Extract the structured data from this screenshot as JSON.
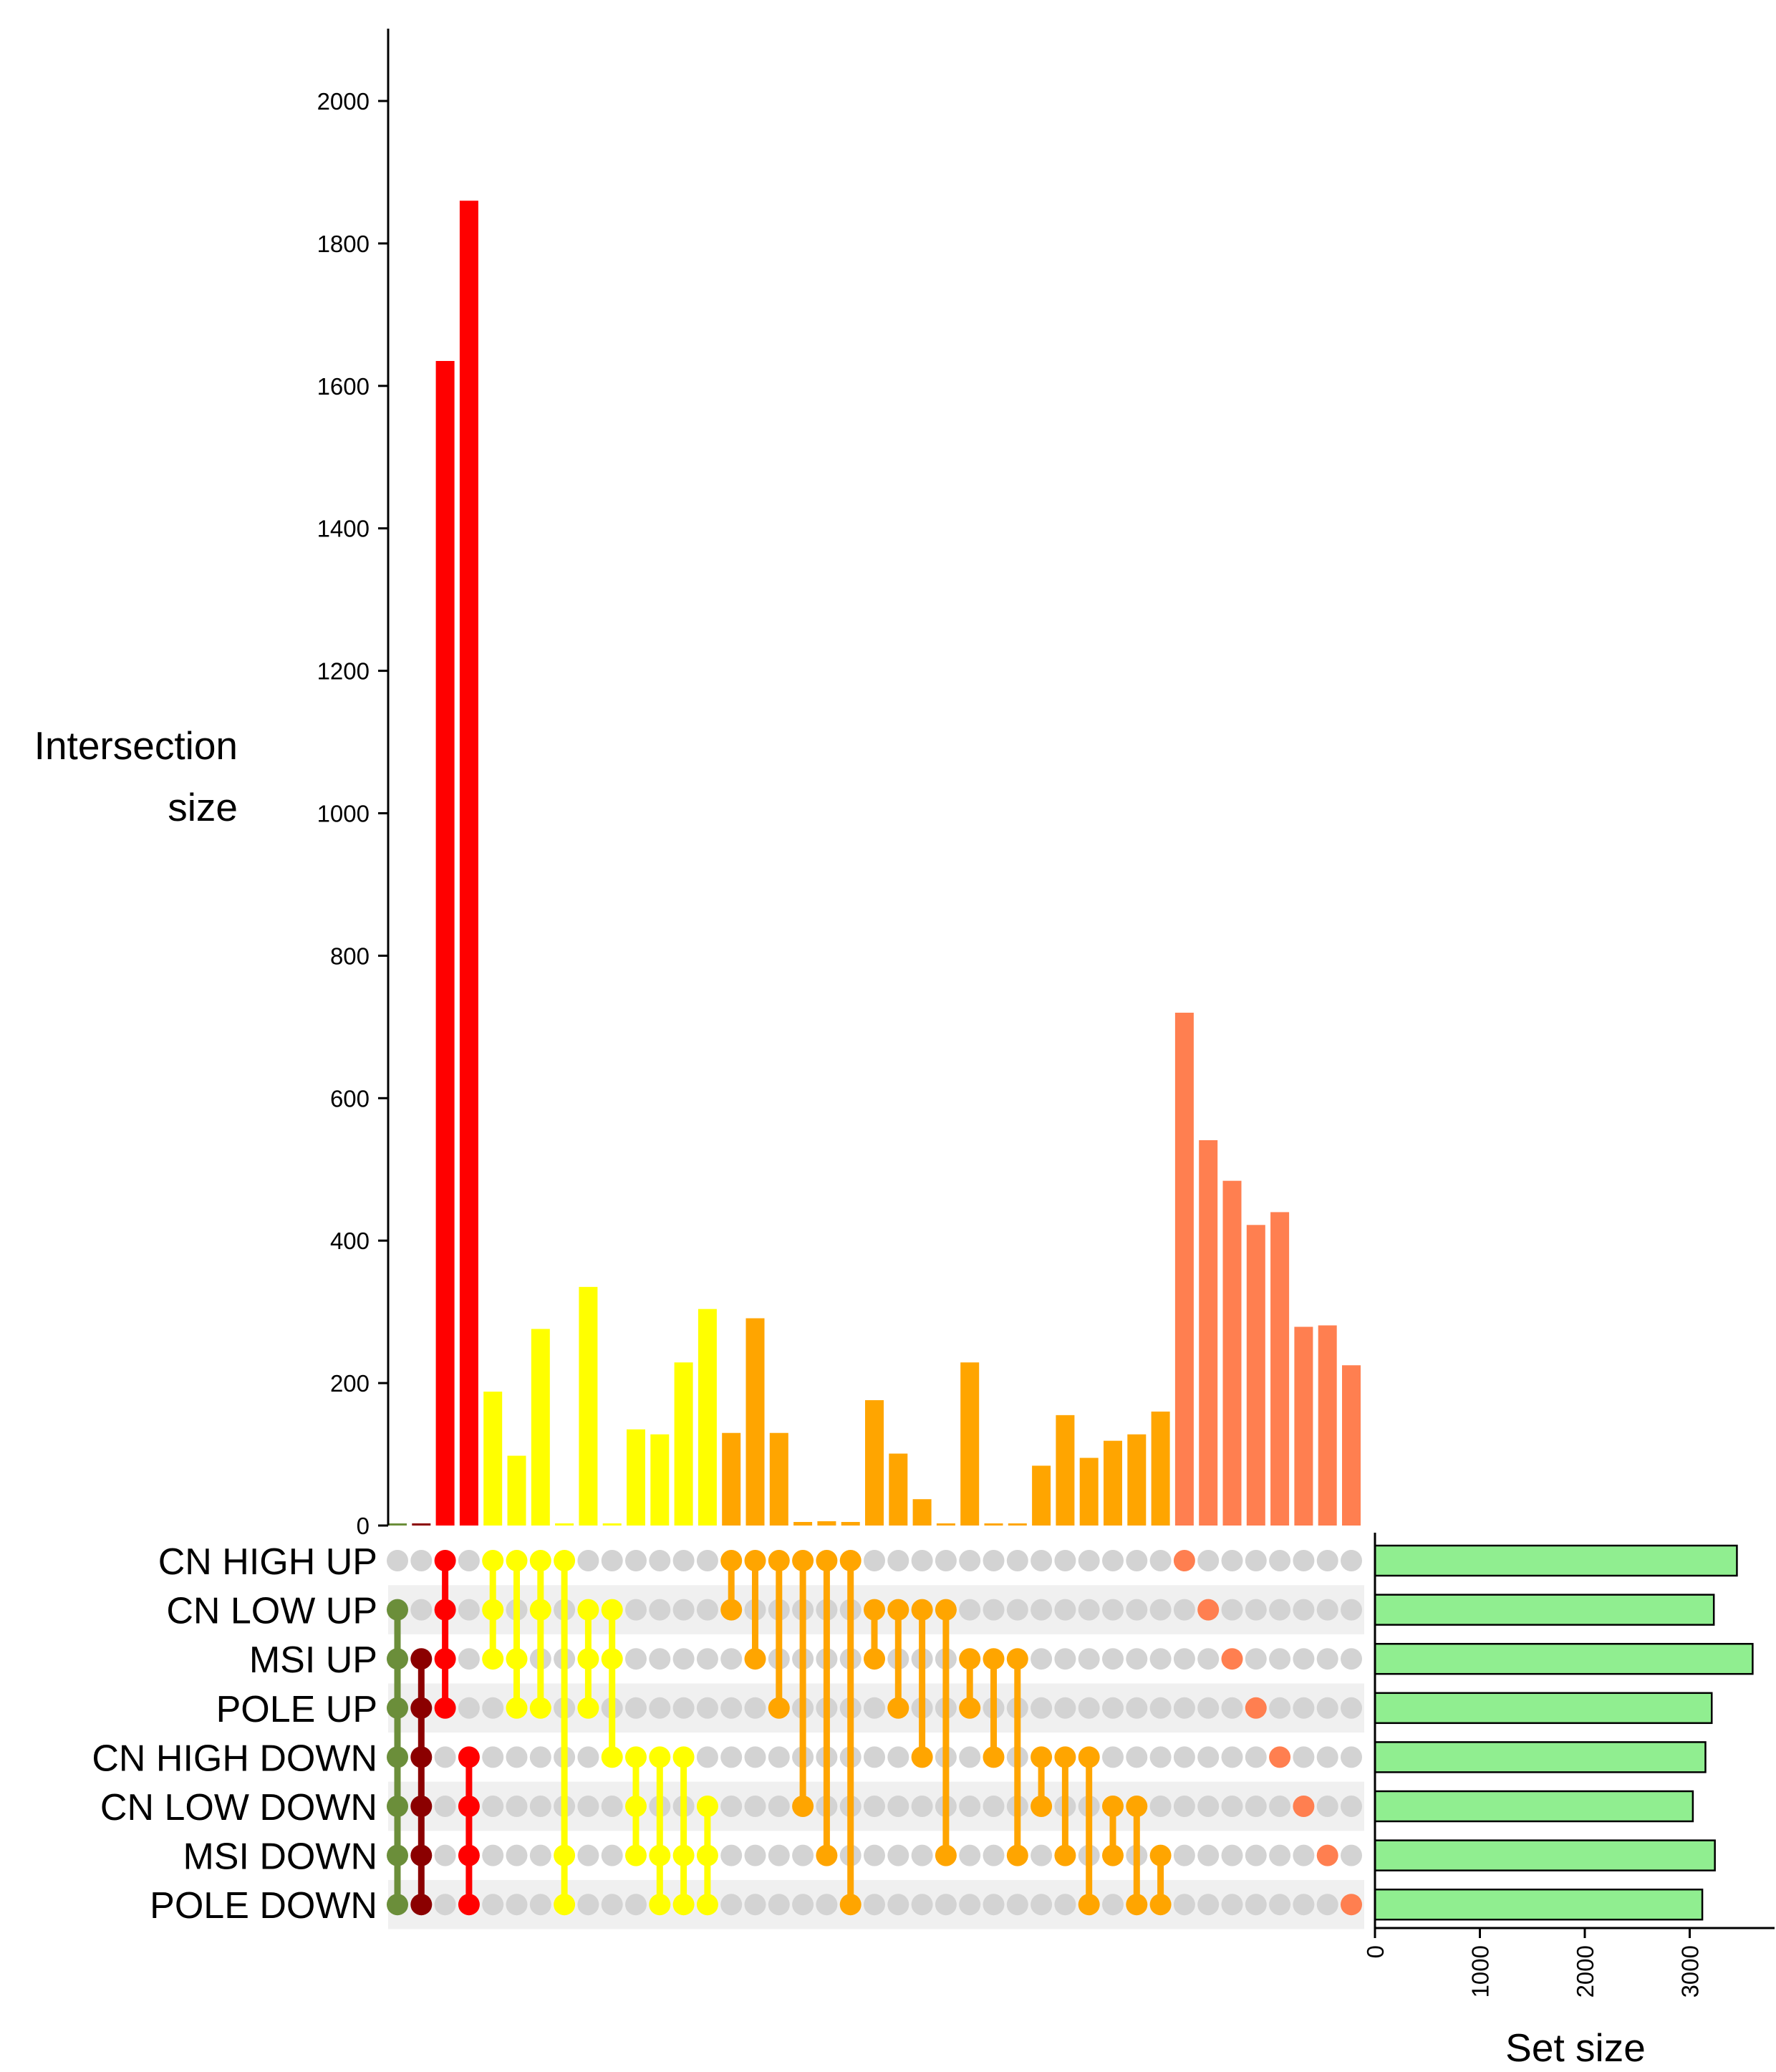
{
  "chart_data": {
    "type": "upset",
    "ylabel_lines": [
      "Intersection",
      "size"
    ],
    "xlabel_setsize": "Set size",
    "ylim": [
      0,
      2100
    ],
    "yticks": [
      0,
      200,
      400,
      600,
      800,
      1000,
      1200,
      1400,
      1600,
      1800,
      2000
    ],
    "setsize_lim": [
      0,
      3800
    ],
    "setsize_ticks": [
      0,
      1000,
      2000,
      3000
    ],
    "sets": [
      "CN HIGH UP",
      "CN LOW UP",
      "MSI UP",
      "POLE UP",
      "CN HIGH DOWN",
      "CN LOW DOWN",
      "MSI DOWN",
      "POLE DOWN"
    ],
    "set_sizes": [
      3450,
      3230,
      3600,
      3210,
      3150,
      3030,
      3240,
      3120
    ],
    "set_bar_color": "#90ee90",
    "inactive_dot_color": "#d3d3d3",
    "intersections": [
      {
        "sets": [
          1,
          2,
          3,
          4,
          5,
          6,
          7
        ],
        "size": 3,
        "color": "#6b8e3a"
      },
      {
        "sets": [
          2,
          3,
          4,
          5,
          6,
          7
        ],
        "size": 3,
        "color": "#8b0000"
      },
      {
        "sets": [
          0,
          1,
          2,
          3
        ],
        "size": 1635,
        "color": "#ff0000"
      },
      {
        "sets": [
          4,
          5,
          6,
          7
        ],
        "size": 1860,
        "color": "#ff0000"
      },
      {
        "sets": [
          0,
          1,
          2
        ],
        "size": 188,
        "color": "#ffff00"
      },
      {
        "sets": [
          0,
          2,
          3
        ],
        "size": 98,
        "color": "#ffff00"
      },
      {
        "sets": [
          0,
          1,
          3
        ],
        "size": 276,
        "color": "#ffff00"
      },
      {
        "sets": [
          0,
          6,
          7
        ],
        "size": 3,
        "color": "#ffff00"
      },
      {
        "sets": [
          1,
          2,
          3
        ],
        "size": 335,
        "color": "#ffff00"
      },
      {
        "sets": [
          1,
          2,
          4
        ],
        "size": 3,
        "color": "#ffff00"
      },
      {
        "sets": [
          4,
          5,
          6
        ],
        "size": 135,
        "color": "#ffff00"
      },
      {
        "sets": [
          4,
          6,
          7
        ],
        "size": 128,
        "color": "#ffff00"
      },
      {
        "sets": [
          4,
          6,
          7
        ],
        "size": 229,
        "color": "#ffff00"
      },
      {
        "sets": [
          5,
          6,
          7
        ],
        "size": 304,
        "color": "#ffff00"
      },
      {
        "sets": [
          0,
          1
        ],
        "size": 130,
        "color": "#ffa500"
      },
      {
        "sets": [
          0,
          2
        ],
        "size": 291,
        "color": "#ffa500"
      },
      {
        "sets": [
          0,
          3
        ],
        "size": 130,
        "color": "#ffa500"
      },
      {
        "sets": [
          0,
          5
        ],
        "size": 5,
        "color": "#ffa500"
      },
      {
        "sets": [
          0,
          6
        ],
        "size": 6,
        "color": "#ffa500"
      },
      {
        "sets": [
          0,
          7
        ],
        "size": 5,
        "color": "#ffa500"
      },
      {
        "sets": [
          1,
          2
        ],
        "size": 176,
        "color": "#ffa500"
      },
      {
        "sets": [
          1,
          3
        ],
        "size": 101,
        "color": "#ffa500"
      },
      {
        "sets": [
          1,
          4
        ],
        "size": 37,
        "color": "#ffa500"
      },
      {
        "sets": [
          1,
          6
        ],
        "size": 3,
        "color": "#ffa500"
      },
      {
        "sets": [
          2,
          3
        ],
        "size": 229,
        "color": "#ffa500"
      },
      {
        "sets": [
          2,
          4
        ],
        "size": 3,
        "color": "#ffa500"
      },
      {
        "sets": [
          2,
          6
        ],
        "size": 3,
        "color": "#ffa500"
      },
      {
        "sets": [
          4,
          5
        ],
        "size": 84,
        "color": "#ffa500"
      },
      {
        "sets": [
          4,
          6
        ],
        "size": 155,
        "color": "#ffa500"
      },
      {
        "sets": [
          4,
          7
        ],
        "size": 95,
        "color": "#ffa500"
      },
      {
        "sets": [
          5,
          6
        ],
        "size": 119,
        "color": "#ffa500"
      },
      {
        "sets": [
          5,
          7
        ],
        "size": 128,
        "color": "#ffa500"
      },
      {
        "sets": [
          6,
          7
        ],
        "size": 160,
        "color": "#ffa500"
      },
      {
        "sets": [
          0
        ],
        "size": 720,
        "color": "#ff7f50"
      },
      {
        "sets": [
          1
        ],
        "size": 541,
        "color": "#ff7f50"
      },
      {
        "sets": [
          2
        ],
        "size": 484,
        "color": "#ff7f50"
      },
      {
        "sets": [
          3
        ],
        "size": 422,
        "color": "#ff7f50"
      },
      {
        "sets": [
          4
        ],
        "size": 440,
        "color": "#ff7f50"
      },
      {
        "sets": [
          5
        ],
        "size": 279,
        "color": "#ff7f50"
      },
      {
        "sets": [
          6
        ],
        "size": 281,
        "color": "#ff7f50"
      },
      {
        "sets": [
          7
        ],
        "size": 225,
        "color": "#ff7f50"
      }
    ]
  }
}
